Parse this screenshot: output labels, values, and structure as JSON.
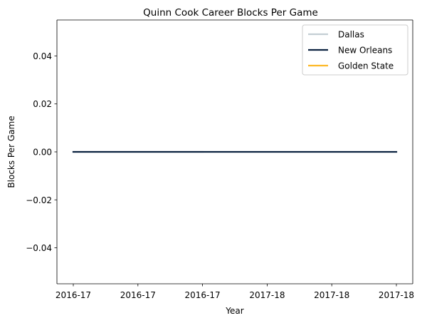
{
  "chart_data": {
    "type": "line",
    "title": "Quinn Cook Career Blocks Per Game",
    "xlabel": "Year",
    "ylabel": "Blocks Per Game",
    "x_tick_labels": [
      "2016-17",
      "2016-17",
      "2016-17",
      "2017-18",
      "2017-18",
      "2017-18"
    ],
    "ylim": [
      -0.055,
      0.055
    ],
    "y_ticks": [
      -0.04,
      -0.02,
      0.0,
      0.02,
      0.04
    ],
    "y_tick_labels": [
      "−0.04",
      "−0.02",
      "0.00",
      "0.02",
      "0.04"
    ],
    "grid": false,
    "legend_position": "top-right",
    "series": [
      {
        "name": "Dallas",
        "color": "#c4ced4",
        "x": [
          0,
          1,
          2
        ],
        "values": [
          0.0,
          0.0,
          0.0
        ]
      },
      {
        "name": "New Orleans",
        "color": "#0c2340",
        "x": [
          0,
          1,
          2,
          3,
          4,
          5
        ],
        "values": [
          0.0,
          0.0,
          0.0,
          0.0,
          0.0,
          0.0
        ]
      },
      {
        "name": "Golden State",
        "color": "#fdb927",
        "x": [],
        "values": []
      }
    ]
  }
}
